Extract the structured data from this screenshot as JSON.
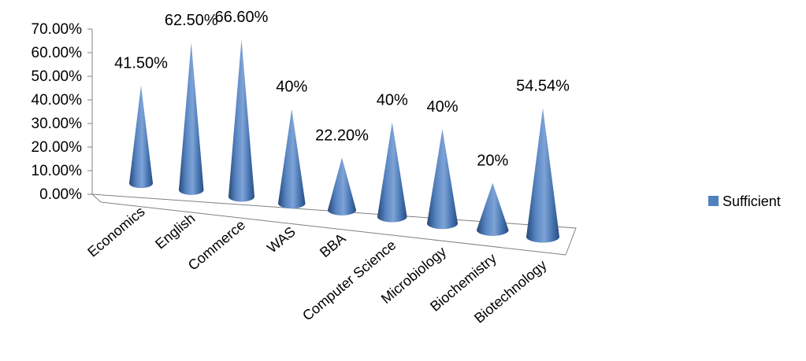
{
  "chart_data": {
    "type": "bar",
    "bar_shape": "3d-cone",
    "categories": [
      "Economics",
      "English",
      "Commerce",
      "WAS",
      "BBA",
      "Computer Science",
      "Microbiology",
      "Biochemistry",
      "Biotechnology"
    ],
    "series": [
      {
        "name": "Sufficient",
        "values": [
          41.5,
          62.5,
          66.6,
          40,
          22.2,
          40,
          40,
          20,
          54.54
        ],
        "data_labels": [
          "41.50%",
          "62.50%",
          "66.60%",
          "40%",
          "22.20%",
          "40%",
          "40%",
          "20%",
          "54.54%"
        ]
      }
    ],
    "y_ticks": [
      "0.00%",
      "10.00%",
      "20.00%",
      "30.00%",
      "40.00%",
      "50.00%",
      "60.00%",
      "70.00%"
    ],
    "ylim": [
      0,
      70
    ],
    "title": "",
    "xlabel": "",
    "ylabel": "",
    "grid": false,
    "legend_position": "right",
    "colors": {
      "series": "#4f81bd",
      "axis": "#808080"
    }
  }
}
